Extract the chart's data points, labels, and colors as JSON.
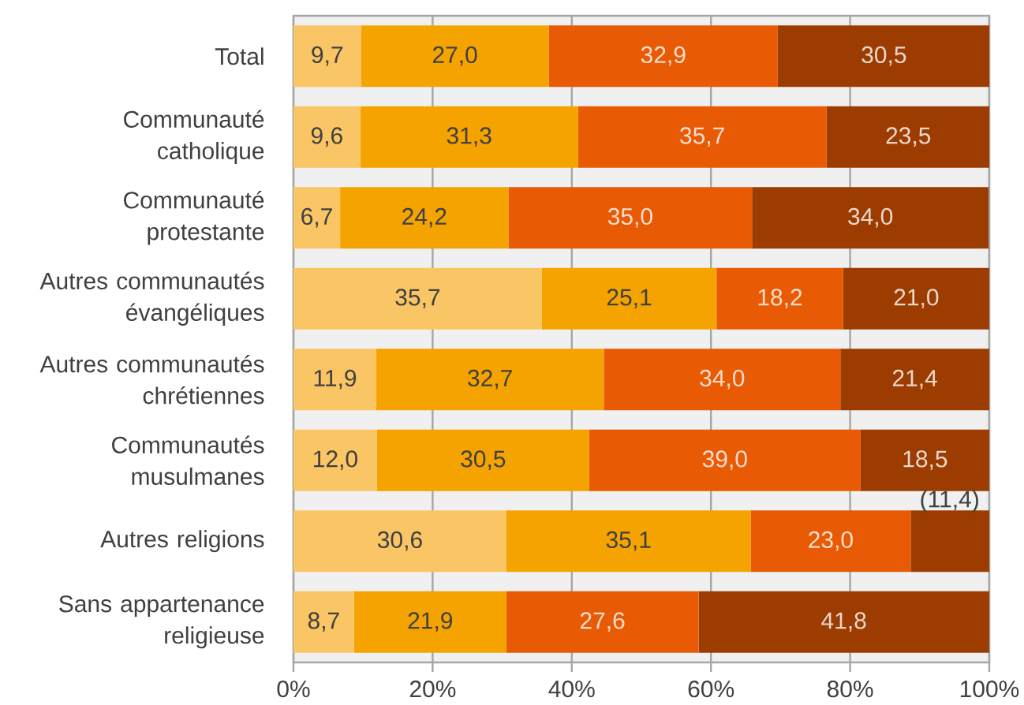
{
  "chart_data": {
    "type": "bar",
    "orientation": "horizontal",
    "stacked": true,
    "categories": [
      "Total",
      "Communauté catholique",
      "Communauté protestante",
      "Autres communautés évangéliques",
      "Autres communautés chrétiennes",
      "Communautés musulmanes",
      "Autres religions",
      "Sans appartenance religieuse"
    ],
    "series": [
      {
        "color": "#fac564",
        "values": [
          9.7,
          9.6,
          6.7,
          35.7,
          11.9,
          12.0,
          30.6,
          8.7
        ],
        "value_labels": [
          "9,7",
          "9,6",
          "6,7",
          "35,7",
          "11,9",
          "12,0",
          "30,6",
          "8,7"
        ]
      },
      {
        "color": "#f5a300",
        "values": [
          27.0,
          31.3,
          24.2,
          25.1,
          32.7,
          30.5,
          35.1,
          21.9
        ],
        "value_labels": [
          "27,0",
          "31,3",
          "24,2",
          "25,1",
          "32,7",
          "30,5",
          "35,1",
          "21,9"
        ]
      },
      {
        "color": "#e95a04",
        "values": [
          32.9,
          35.7,
          35.0,
          18.2,
          34.0,
          39.0,
          23.0,
          27.6
        ],
        "value_labels": [
          "32,9",
          "35,7",
          "35,0",
          "18,2",
          "34,0",
          "39,0",
          "23,0",
          "27,6"
        ]
      },
      {
        "color": "#9d3c00",
        "values": [
          30.5,
          23.5,
          34.0,
          21.0,
          21.4,
          18.5,
          11.4,
          41.8
        ],
        "value_labels": [
          "30,5",
          "23,5",
          "34,0",
          "21,0",
          "21,4",
          "18,5",
          null,
          "41,8"
        ]
      }
    ],
    "xlim": [
      0,
      100
    ],
    "xticks": [
      {
        "value": 0,
        "label": "0%"
      },
      {
        "value": 20,
        "label": "20%"
      },
      {
        "value": 40,
        "label": "40%"
      },
      {
        "value": 60,
        "label": "60%"
      },
      {
        "value": 80,
        "label": "80%"
      },
      {
        "value": 100,
        "label": "100%"
      }
    ],
    "grid": "x",
    "annotations": [
      {
        "text": "(11,4)",
        "x": 94.3,
        "y": "Autres religions"
      }
    ]
  }
}
